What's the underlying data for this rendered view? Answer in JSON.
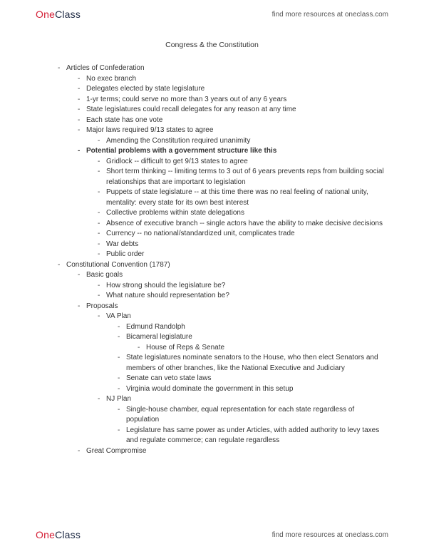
{
  "brand": {
    "one": "One",
    "class": "Class"
  },
  "tagline": "find more resources at oneclass.com",
  "title": "Congress & the Constitution",
  "outline": [
    {
      "lvl": 1,
      "text": "Articles of Confederation"
    },
    {
      "lvl": 2,
      "text": "No exec branch"
    },
    {
      "lvl": 2,
      "text": "Delegates elected by state legislature"
    },
    {
      "lvl": 2,
      "text": "1-yr terms; could serve no more than 3 years out of any 6 years"
    },
    {
      "lvl": 2,
      "text": "State legislatures could recall delegates for any reason at any time"
    },
    {
      "lvl": 2,
      "text": "Each state has one vote"
    },
    {
      "lvl": 2,
      "text": "Major laws required 9/13 states to agree"
    },
    {
      "lvl": 3,
      "text": "Amending the Constitution required unanimity"
    },
    {
      "lvl": 2,
      "text": "Potential problems with a government structure like this",
      "bold": true
    },
    {
      "lvl": 3,
      "text": "Gridlock -- difficult to get 9/13 states to agree"
    },
    {
      "lvl": 3,
      "text": "Short term thinking -- limiting terms to 3 out of 6 years prevents reps from building social relationships that are important to legislation"
    },
    {
      "lvl": 3,
      "text": "Puppets of state legislature -- at this time there was no real feeling of national unity, mentality: every state for its own best interest"
    },
    {
      "lvl": 3,
      "text": "Collective problems within state delegations"
    },
    {
      "lvl": 3,
      "text": "Absence of executive branch -- single actors have the ability to make decisive decisions"
    },
    {
      "lvl": 3,
      "text": "Currency -- no national/standardized unit, complicates trade"
    },
    {
      "lvl": 3,
      "text": "War debts"
    },
    {
      "lvl": 3,
      "text": "Public order"
    },
    {
      "lvl": 1,
      "text": "Constitutional Convention (1787)"
    },
    {
      "lvl": 2,
      "text": "Basic goals"
    },
    {
      "lvl": 3,
      "text": "How strong should the legislature be?"
    },
    {
      "lvl": 3,
      "text": "What nature should representation be?"
    },
    {
      "lvl": 2,
      "text": "Proposals"
    },
    {
      "lvl": 3,
      "text": "VA Plan"
    },
    {
      "lvl": 4,
      "text": "Edmund Randolph"
    },
    {
      "lvl": 4,
      "text": "Bicameral legislature"
    },
    {
      "lvl": 5,
      "text": "House of Reps & Senate"
    },
    {
      "lvl": 4,
      "text": "State legislatures nominate senators to the House, who then elect Senators and members of other branches, like the National Executive and Judiciary"
    },
    {
      "lvl": 4,
      "text": "Senate can veto state laws"
    },
    {
      "lvl": 4,
      "text": "Virginia would dominate the government in this setup"
    },
    {
      "lvl": 3,
      "text": "NJ Plan"
    },
    {
      "lvl": 4,
      "text": "Single-house chamber, equal representation for each state regardless of population"
    },
    {
      "lvl": 4,
      "text": "Legislature has same power as under Articles, with added authority to levy taxes and regulate commerce; can regulate regardless"
    },
    {
      "lvl": 2,
      "text": "Great Compromise"
    }
  ]
}
